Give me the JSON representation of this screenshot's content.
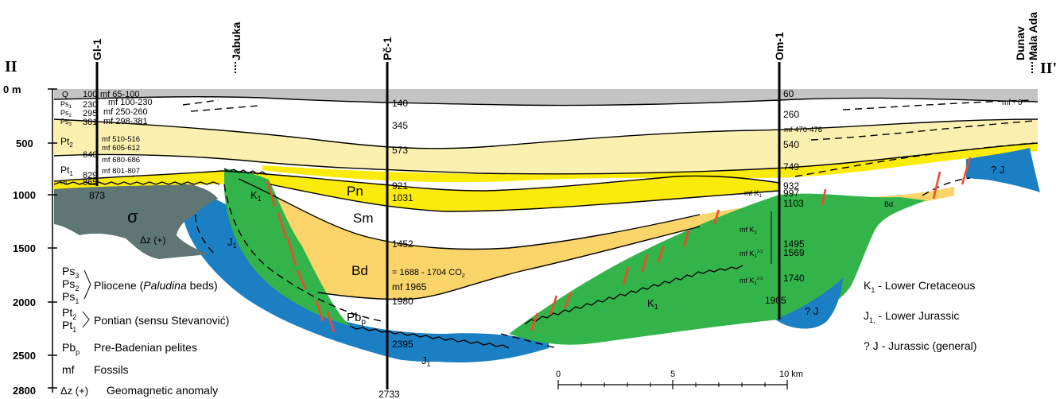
{
  "colors": {
    "quaternary": "#c4c4c4",
    "pt2_yellow": "#fbf0b0",
    "pn_yellow": "#fbeb0a",
    "badenian": "#fbd56a",
    "cretaceous_green": "#33b44a",
    "jurassic_blue": "#1a7fc3",
    "basalt_gray": "#5f7674",
    "fault_red": "#f04a2a"
  },
  "section": {
    "left_label": "II",
    "right_label": "II'",
    "depth_unit": "0 m",
    "depth_ticks": [
      "500",
      "1000",
      "1500",
      "2000",
      "2500",
      "2800"
    ]
  },
  "wells": [
    {
      "name": "Gl-1",
      "td": "873",
      "depths": [
        "100",
        "230",
        "295",
        "381",
        "640",
        "829",
        "865"
      ],
      "fossils": [
        "mf 65-100",
        "mf 100-230",
        "mf 250-260",
        "mf 298-381",
        "mf 510-516",
        "mf 605-612",
        "mf 680-686",
        "mf 801-807"
      ]
    },
    {
      "name": "Jabuka"
    },
    {
      "name": "Pč-1",
      "td": "2733",
      "depths": [
        "140",
        "345",
        "573",
        "921",
        "1031",
        "1452",
        "1980",
        "2395"
      ],
      "notes": [
        "= 1688 - 1704 CO",
        "mf 1965"
      ]
    },
    {
      "name": "Om-1",
      "td": "1905",
      "depths": [
        "60",
        "260",
        "540",
        "749",
        "932",
        "997",
        "1103",
        "1495",
        "1569",
        "1740"
      ],
      "fossils": [
        "mf 470-476",
        "mf K",
        "mf K",
        "mf K",
        "mf K"
      ]
    },
    {
      "name": "Dunav Mala Ada",
      "line1": "Dunav",
      "line2": "Mala Ada",
      "fossil": "mf - 0"
    }
  ],
  "units": {
    "Q": "Q",
    "Ps1": "Ps",
    "Ps2": "Ps",
    "Ps3": "Ps",
    "Pt2": "Pt",
    "Pt1": "Pt",
    "Pn": "Pn",
    "Sm": "Sm",
    "Bd": "Bd",
    "Pbp": "Pb",
    "K1": "K",
    "J1": "J",
    "Jq": "? J",
    "sigma": "σ",
    "dz": "Δz (+)"
  },
  "legend_left": [
    {
      "sym": "Ps",
      "sub": "3"
    },
    {
      "sym": "Ps",
      "sub": "2",
      "text": "Pliocene (",
      "italic": "Paludina",
      "text2": " beds)"
    },
    {
      "sym": "Ps",
      "sub": "1"
    },
    {
      "sym": "Pt",
      "sub": "2"
    },
    {
      "sym": "Pt",
      "sub": "1",
      "text": "Pontian (sensu Stevanović)"
    },
    {
      "sym": "Pb",
      "sub": "p",
      "text": "Pre-Badenian pelites"
    },
    {
      "sym": "mf",
      "text": "Fossils"
    },
    {
      "sym": "Δz (+)",
      "text": "Geomagnetic anomaly"
    }
  ],
  "legend_right": [
    {
      "sym": "K",
      "sub": "1",
      "text": " - Lower Cretaceous"
    },
    {
      "sym": "J",
      "sub": "1,",
      "text": " - Lower Jurassic"
    },
    {
      "sym": "? J",
      "text": " - Jurassic (general)"
    }
  ],
  "scale_bar": {
    "labels": [
      "0",
      "5",
      "10 km"
    ]
  }
}
